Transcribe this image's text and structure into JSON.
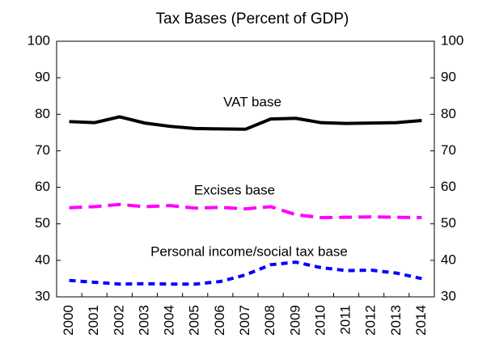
{
  "chart_data": {
    "type": "line",
    "title": "Tax Bases (Percent of GDP)",
    "categories": [
      "2000",
      "2001",
      "2002",
      "2003",
      "2004",
      "2005",
      "2006",
      "2007",
      "2008",
      "2009",
      "2010",
      "2011",
      "2012",
      "2013",
      "2014"
    ],
    "series": [
      {
        "name": "VAT base",
        "color": "#000000",
        "dash": "solid",
        "values": [
          78,
          77.7,
          79.3,
          77.6,
          76.7,
          76.1,
          76,
          75.9,
          78.7,
          78.9,
          77.7,
          77.5,
          77.6,
          77.7,
          78.3
        ]
      },
      {
        "name": "Excises base",
        "color": "#ff00ff",
        "dash": "dashed",
        "values": [
          54.4,
          54.7,
          55.3,
          54.7,
          55,
          54.3,
          54.5,
          54.1,
          54.7,
          52.5,
          51.7,
          51.8,
          51.9,
          51.8,
          51.7
        ]
      },
      {
        "name": "Personal income/social tax base",
        "color": "#0000ff",
        "dash": "dotted",
        "values": [
          34.5,
          34,
          33.5,
          33.6,
          33.5,
          33.5,
          34.2,
          36,
          38.8,
          39.5,
          38,
          37.2,
          37.3,
          36.5,
          35
        ]
      }
    ],
    "ylim": [
      30,
      100
    ],
    "yticks": [
      30,
      40,
      50,
      60,
      70,
      80,
      90,
      100
    ],
    "y2lim": [
      30,
      100
    ],
    "y2ticks": [
      30,
      40,
      50,
      60,
      70,
      80,
      90,
      100
    ]
  }
}
